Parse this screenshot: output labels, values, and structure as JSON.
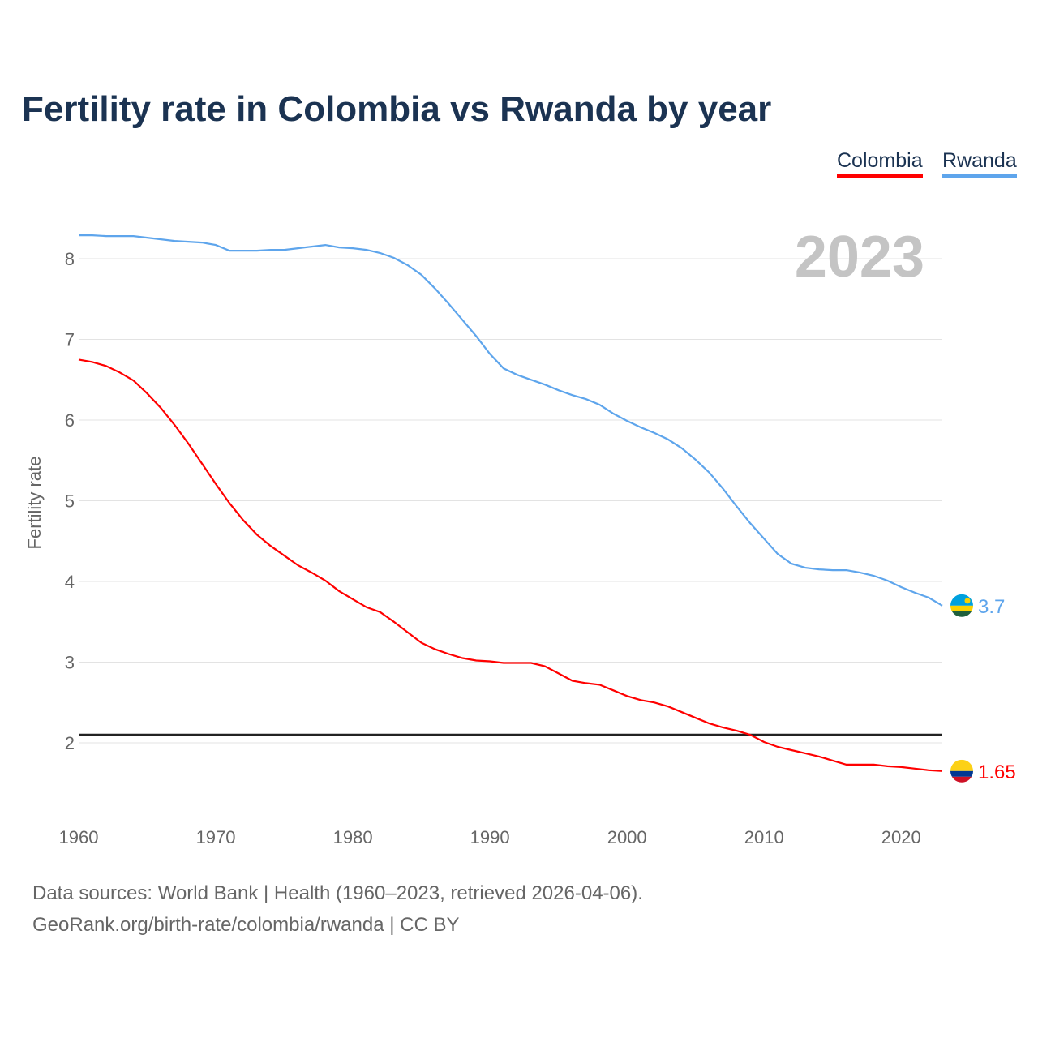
{
  "title": "Fertility rate in Colombia vs Rwanda by year",
  "legend": [
    {
      "label": "Colombia",
      "color": "#ff0000"
    },
    {
      "label": "Rwanda",
      "color": "#5ea5ec"
    }
  ],
  "footer": {
    "line1": "Data sources: World Bank | Health (1960–2023, retrieved 2026-04-06).",
    "line2": "GeoRank.org/birth-rate/colombia/rwanda | CC BY"
  },
  "chart_data": {
    "type": "line",
    "title": "Fertility rate in Colombia vs Rwanda by year",
    "ylabel": "Fertility rate",
    "xlabel": "",
    "xlim": [
      1960,
      2023
    ],
    "ylim": [
      1.1,
      8.6
    ],
    "xticks": [
      1960,
      1970,
      1980,
      1990,
      2000,
      2010,
      2020
    ],
    "yticks": [
      2,
      3,
      4,
      5,
      6,
      7,
      8
    ],
    "grid": true,
    "legend_position": "top-right",
    "year_label": "2023",
    "reference_line": {
      "y": 2.1,
      "color": "#222222"
    },
    "x": [
      1960,
      1961,
      1962,
      1963,
      1964,
      1965,
      1966,
      1967,
      1968,
      1969,
      1970,
      1971,
      1972,
      1973,
      1974,
      1975,
      1976,
      1977,
      1978,
      1979,
      1980,
      1981,
      1982,
      1983,
      1984,
      1985,
      1986,
      1987,
      1988,
      1989,
      1990,
      1991,
      1992,
      1993,
      1994,
      1995,
      1996,
      1997,
      1998,
      1999,
      2000,
      2001,
      2002,
      2003,
      2004,
      2005,
      2006,
      2007,
      2008,
      2009,
      2010,
      2011,
      2012,
      2013,
      2014,
      2015,
      2016,
      2017,
      2018,
      2019,
      2020,
      2021,
      2022,
      2023
    ],
    "series": [
      {
        "name": "Colombia",
        "color": "#ff0000",
        "end_label": "1.65",
        "values": [
          6.75,
          6.72,
          6.67,
          6.59,
          6.49,
          6.33,
          6.15,
          5.94,
          5.71,
          5.46,
          5.21,
          4.97,
          4.76,
          4.58,
          4.44,
          4.32,
          4.2,
          4.11,
          4.01,
          3.88,
          3.78,
          3.68,
          3.62,
          3.5,
          3.37,
          3.24,
          3.16,
          3.1,
          3.05,
          3.02,
          3.01,
          2.99,
          2.99,
          2.99,
          2.95,
          2.86,
          2.77,
          2.74,
          2.72,
          2.65,
          2.58,
          2.53,
          2.5,
          2.45,
          2.38,
          2.31,
          2.24,
          2.19,
          2.15,
          2.1,
          2.01,
          1.95,
          1.91,
          1.87,
          1.83,
          1.78,
          1.73,
          1.73,
          1.73,
          1.71,
          1.7,
          1.68,
          1.66,
          1.65
        ]
      },
      {
        "name": "Rwanda",
        "color": "#5ea5ec",
        "end_label": "3.7",
        "values": [
          8.29,
          8.29,
          8.28,
          8.28,
          8.28,
          8.26,
          8.24,
          8.22,
          8.21,
          8.2,
          8.17,
          8.1,
          8.1,
          8.1,
          8.11,
          8.11,
          8.13,
          8.15,
          8.17,
          8.14,
          8.13,
          8.11,
          8.07,
          8.01,
          7.92,
          7.8,
          7.63,
          7.44,
          7.24,
          7.04,
          6.82,
          6.64,
          6.56,
          6.5,
          6.44,
          6.37,
          6.31,
          6.26,
          6.19,
          6.08,
          5.99,
          5.91,
          5.84,
          5.76,
          5.65,
          5.51,
          5.35,
          5.15,
          4.93,
          4.72,
          4.53,
          4.34,
          4.22,
          4.17,
          4.15,
          4.14,
          4.14,
          4.11,
          4.07,
          4.01,
          3.93,
          3.86,
          3.8,
          3.7
        ]
      }
    ]
  }
}
